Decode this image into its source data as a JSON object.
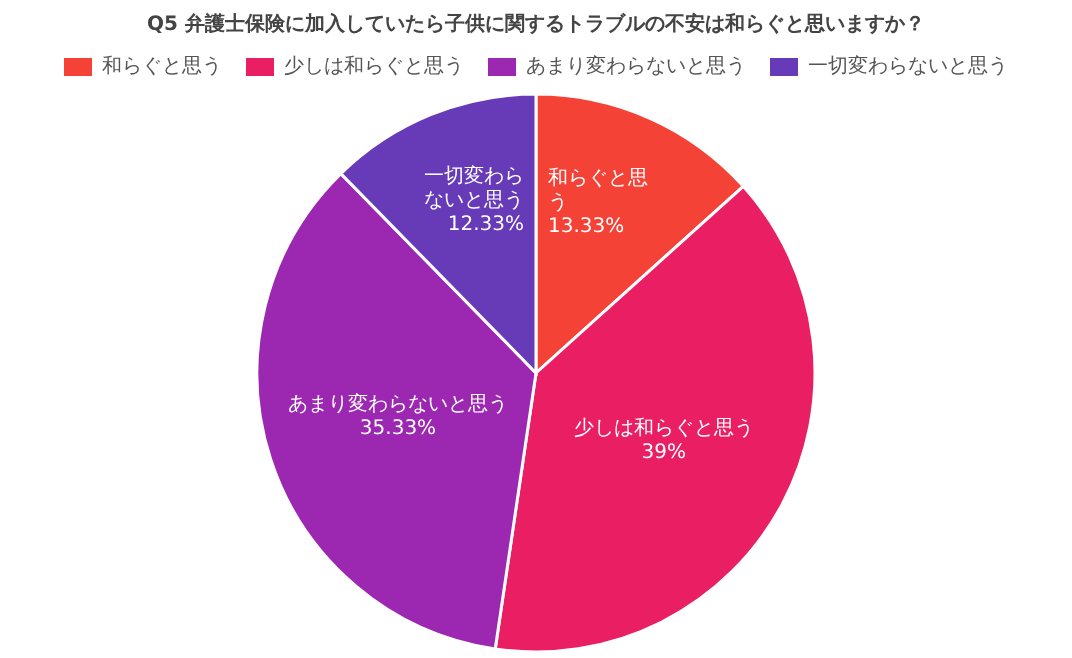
{
  "chart_data": {
    "type": "pie",
    "title": "Q5 弁護士保険に加入していたら子供に関するトラブルの不安は和らぐと思いますか？",
    "categories": [
      "和らぐと思う",
      "少しは和らぐと思う",
      "あまり変わらないと思う",
      "一切変わらないと思う"
    ],
    "values": [
      13.33,
      39,
      35.33,
      12.33
    ],
    "value_labels": [
      "13.33%",
      "39%",
      "35.33%",
      "12.33%"
    ],
    "colors": [
      "#f44336",
      "#e91e63",
      "#9c27b0",
      "#673ab7"
    ],
    "legend": "top"
  }
}
